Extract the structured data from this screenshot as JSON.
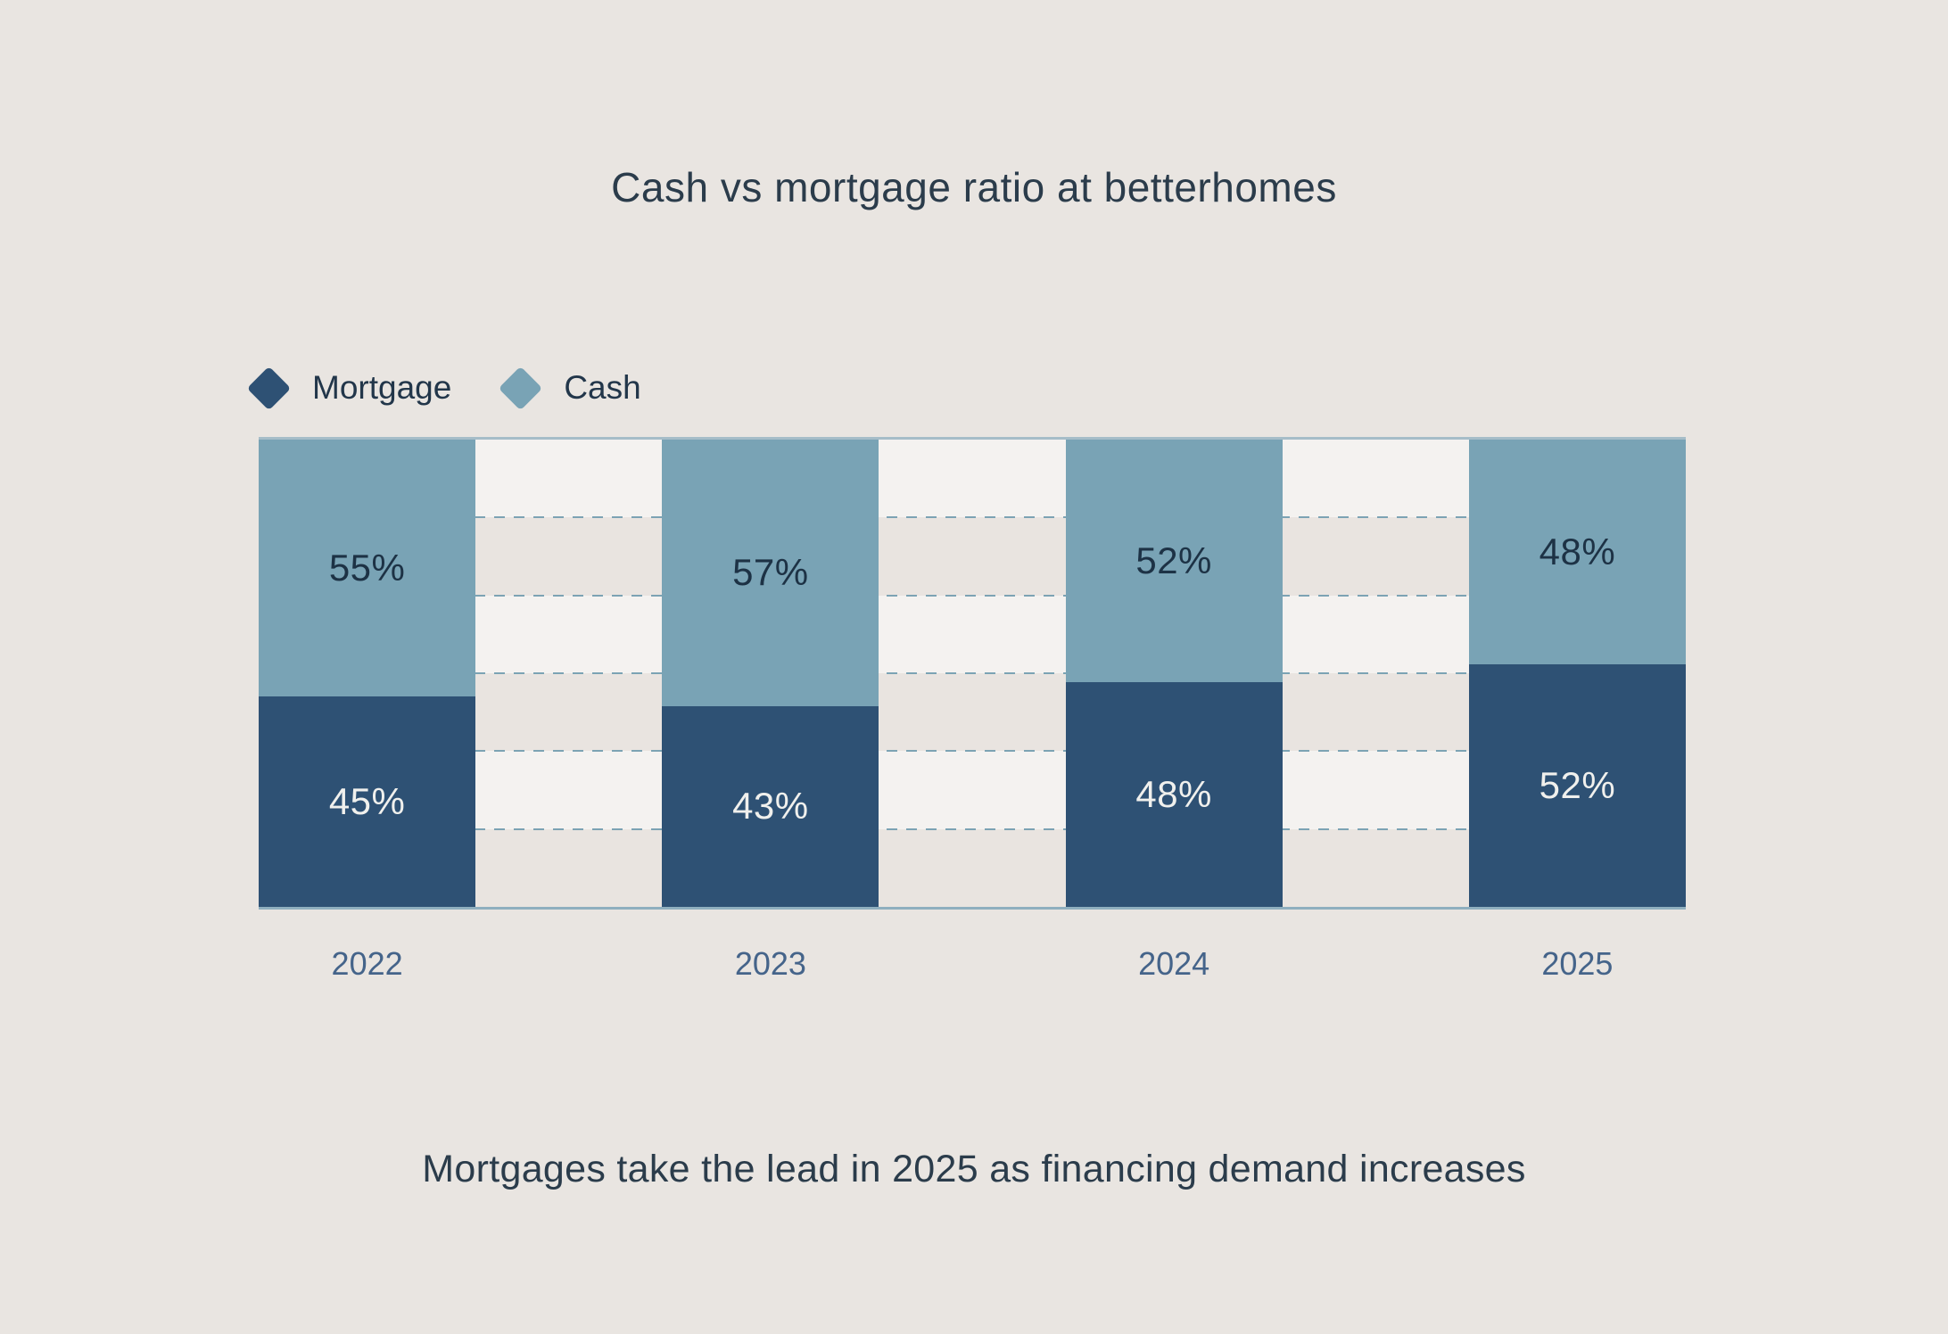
{
  "title": "Cash vs mortgage ratio at betterhomes",
  "caption": "Mortgages take the lead in 2025 as financing demand increases",
  "legend": [
    {
      "label": "Mortgage",
      "swatch": "diamond-icon",
      "color": "#2e5174"
    },
    {
      "label": "Cash",
      "swatch": "diamond-icon",
      "color": "#79a3b5"
    }
  ],
  "chart_data": {
    "type": "bar",
    "stacked": true,
    "orientation": "vertical",
    "categories": [
      "2022",
      "2023",
      "2024",
      "2025"
    ],
    "series": [
      {
        "name": "Mortgage",
        "color": "#2e5174",
        "values": [
          45,
          43,
          48,
          52
        ]
      },
      {
        "name": "Cash",
        "color": "#79a3b5",
        "values": [
          55,
          57,
          52,
          48
        ]
      }
    ],
    "value_format": "percent",
    "data_labels": [
      "45%",
      "43%",
      "48%",
      "52%",
      "55%",
      "57%",
      "52%",
      "48%"
    ],
    "ylim": [
      0,
      100
    ],
    "grid": "5 dashed horizontal lines, 6 alternating background bands",
    "grid_bands": 6,
    "legend_position": "top-left",
    "xlabel": "",
    "ylabel": ""
  },
  "colors": {
    "background": "#e9e5e1",
    "stripe_light": "#f4f2f0",
    "stripe_beige": "#e9e4e0",
    "grid_dash": "#7ca3b4",
    "plot_border": "#8fafbf",
    "title_text": "#2b3c4b",
    "axis_text": "#45648a",
    "label_on_cash": "#1d3245",
    "label_on_mortgage": "#f0f0ed"
  }
}
